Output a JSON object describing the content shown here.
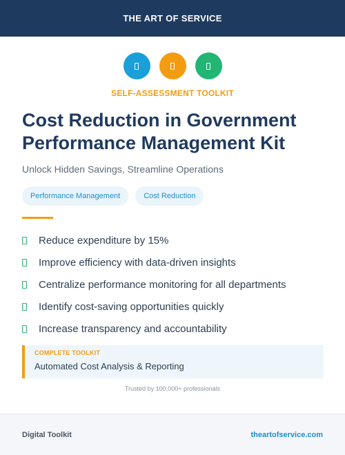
{
  "header": {
    "brand": "THE ART OF SERVICE"
  },
  "icons": [
    {
      "name": "document-icon",
      "color": "#1a9fd9"
    },
    {
      "name": "clipboard-icon",
      "color": "#f39c12"
    },
    {
      "name": "checklist-icon",
      "color": "#22b573"
    }
  ],
  "kicker": {
    "text": "SELF-ASSESSMENT TOOLKIT",
    "color": "#f39c12"
  },
  "title": "Cost Reduction in Government Performance Management Kit",
  "subtitle": "Unlock Hidden Savings, Streamline Operations",
  "tags": [
    "Performance Management",
    "Cost Reduction"
  ],
  "accent_color": "#f39c12",
  "benefits": [
    "Reduce expenditure by 15%",
    "Improve efficiency with data-driven insights",
    "Centralize performance monitoring for all departments",
    "Identify cost-saving opportunities quickly",
    "Increase transparency and accountability"
  ],
  "callout": {
    "label": "COMPLETE TOOLKIT",
    "text": "Automated Cost Analysis & Reporting"
  },
  "trust": "Trusted by 100,000+ professionals",
  "footer": {
    "left": "Digital Toolkit",
    "right": "theartofservice.com"
  }
}
